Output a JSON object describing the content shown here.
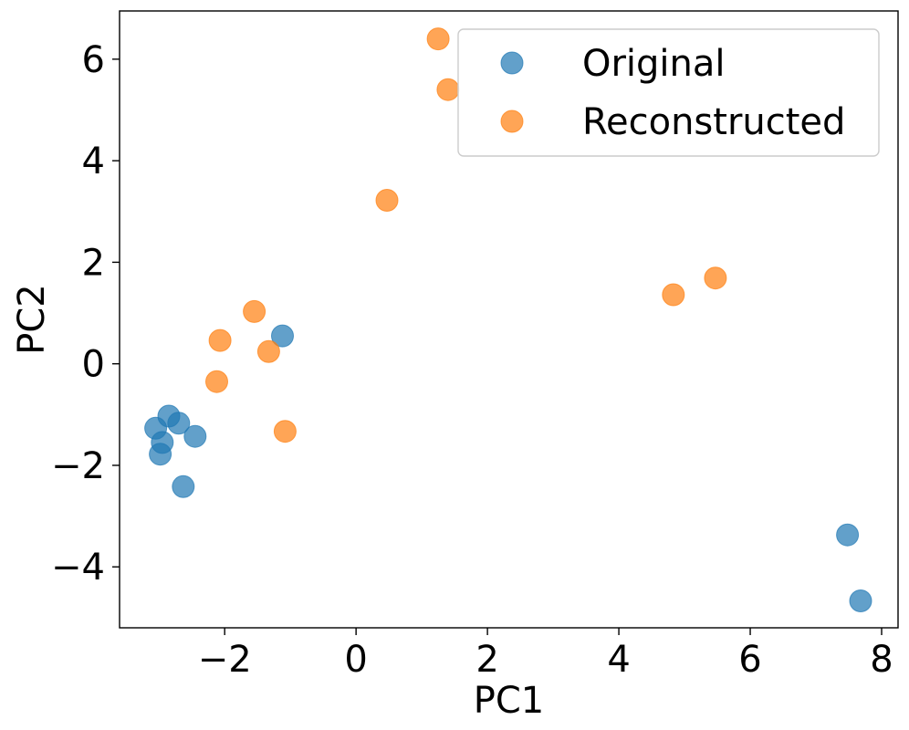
{
  "chart_data": {
    "type": "scatter",
    "title": "",
    "xlabel": "PC1",
    "ylabel": "PC2",
    "xlim": [
      -3.6,
      8.25
    ],
    "ylim": [
      -5.2,
      6.95
    ],
    "xticks": [
      -2,
      0,
      2,
      4,
      6,
      8
    ],
    "yticks": [
      -4,
      -2,
      0,
      2,
      4,
      6
    ],
    "xtick_labels": [
      "−2",
      "0",
      "2",
      "4",
      "6",
      "8"
    ],
    "ytick_labels": [
      "−4",
      "−2",
      "0",
      "2",
      "4",
      "6"
    ],
    "grid": false,
    "legend_position": "top-right",
    "series": [
      {
        "name": "Original",
        "color": "#1f77b4",
        "points": [
          {
            "x": -3.05,
            "y": -1.27
          },
          {
            "x": -2.98,
            "y": -1.78
          },
          {
            "x": -2.95,
            "y": -1.55
          },
          {
            "x": -2.85,
            "y": -1.03
          },
          {
            "x": -2.7,
            "y": -1.17
          },
          {
            "x": -2.45,
            "y": -1.43
          },
          {
            "x": -2.63,
            "y": -2.42
          },
          {
            "x": -1.12,
            "y": 0.55
          },
          {
            "x": 7.48,
            "y": -3.37
          },
          {
            "x": 7.68,
            "y": -4.67
          }
        ]
      },
      {
        "name": "Reconstructed",
        "color": "#ff7f0e",
        "points": [
          {
            "x": -2.12,
            "y": -0.35
          },
          {
            "x": -2.07,
            "y": 0.46
          },
          {
            "x": -1.55,
            "y": 1.03
          },
          {
            "x": -1.33,
            "y": 0.24
          },
          {
            "x": -1.08,
            "y": -1.33
          },
          {
            "x": 0.47,
            "y": 3.22
          },
          {
            "x": 1.25,
            "y": 6.4
          },
          {
            "x": 1.4,
            "y": 5.4
          },
          {
            "x": 4.83,
            "y": 1.36
          },
          {
            "x": 5.47,
            "y": 1.69
          }
        ]
      }
    ]
  }
}
